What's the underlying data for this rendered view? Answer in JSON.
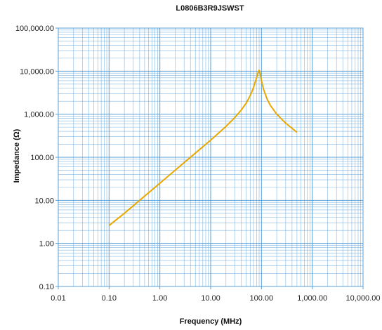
{
  "chart_data": {
    "type": "line",
    "title": "L0806B3R9JSWST",
    "xlabel": "Frequency (MHz)",
    "ylabel": "Impedance (Ω)",
    "x_scale": "log",
    "y_scale": "log",
    "xlim": [
      0.01,
      10000
    ],
    "ylim": [
      0.1,
      100000
    ],
    "x_ticks": [
      "0.01",
      "0.10",
      "1.00",
      "10.00",
      "100.00",
      "1,000.00",
      "10,000.00"
    ],
    "y_ticks": [
      "0.10",
      "1.00",
      "10.00",
      "100.00",
      "1,000.00",
      "10,000.00",
      "100,000.00"
    ],
    "grid": true,
    "line_color": "#e8a800",
    "grid_color": "#5aa0d8",
    "series": [
      {
        "x": [
          0.1,
          0.2,
          0.5,
          1,
          2,
          5,
          10,
          20,
          30,
          40,
          50,
          60,
          70,
          80,
          85,
          90,
          95,
          100,
          110,
          130,
          150,
          200,
          300,
          400,
          500
        ],
        "y": [
          2.6,
          5,
          12.5,
          25,
          50,
          125,
          250,
          520,
          840,
          1250,
          1800,
          2700,
          4200,
          7000,
          9000,
          10500,
          8500,
          6000,
          3800,
          2200,
          1600,
          1000,
          620,
          470,
          380
        ]
      }
    ]
  }
}
